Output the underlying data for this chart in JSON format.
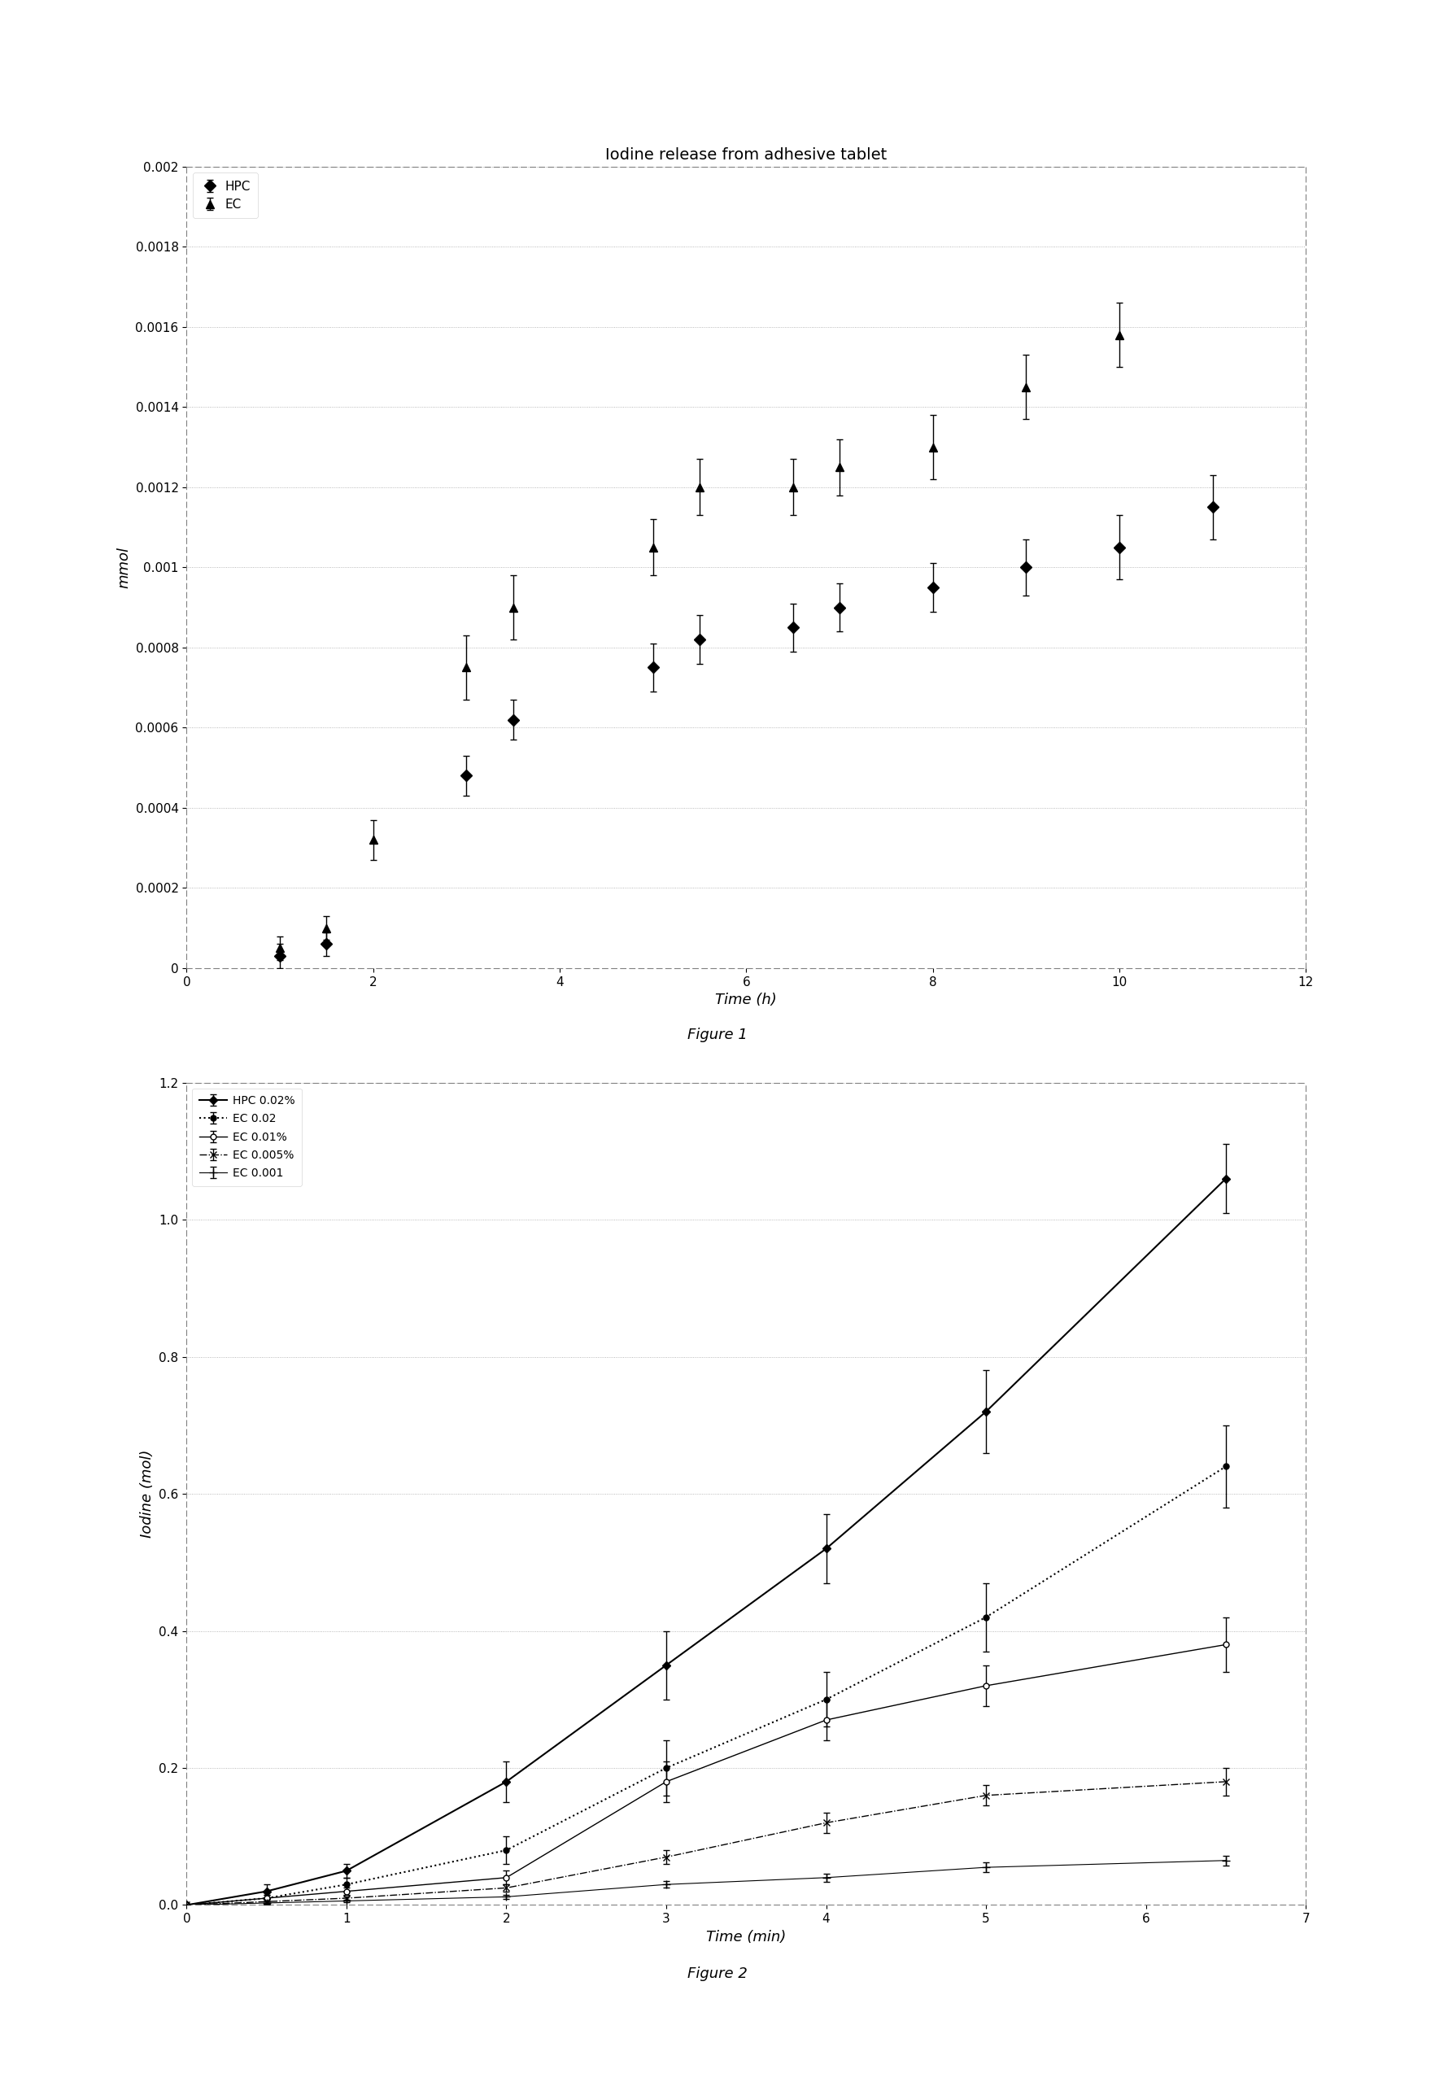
{
  "fig1": {
    "title": "Iodine release from adhesive tablet",
    "xlabel": "Time (h)",
    "ylabel": "mmol",
    "xlim": [
      0,
      12
    ],
    "ylim": [
      0,
      0.002
    ],
    "yticks": [
      0,
      0.0002,
      0.0004,
      0.0006,
      0.0008,
      0.001,
      0.0012,
      0.0014,
      0.0016,
      0.0018,
      0.002
    ],
    "xticks": [
      0,
      2,
      4,
      6,
      8,
      10,
      12
    ],
    "HPC": {
      "x": [
        1,
        1.5,
        3,
        3.5,
        5,
        5.5,
        6.5,
        7,
        8,
        9,
        10,
        11
      ],
      "y": [
        3e-05,
        6e-05,
        0.00048,
        0.00062,
        0.00075,
        0.00082,
        0.00085,
        0.0009,
        0.00095,
        0.001,
        0.00105,
        0.00115
      ],
      "yerr": [
        3e-05,
        3e-05,
        5e-05,
        5e-05,
        6e-05,
        6e-05,
        6e-05,
        6e-05,
        6e-05,
        7e-05,
        8e-05,
        8e-05
      ],
      "label": "HPC",
      "marker": "D",
      "color": "black"
    },
    "EC": {
      "x": [
        1,
        1.5,
        2,
        3,
        3.5,
        5,
        5.5,
        6.5,
        7,
        8,
        9,
        10
      ],
      "y": [
        5e-05,
        0.0001,
        0.00032,
        0.00075,
        0.0009,
        0.00105,
        0.0012,
        0.0012,
        0.00125,
        0.0013,
        0.00145,
        0.00158
      ],
      "yerr": [
        3e-05,
        3e-05,
        5e-05,
        8e-05,
        8e-05,
        7e-05,
        7e-05,
        7e-05,
        7e-05,
        8e-05,
        8e-05,
        8e-05
      ],
      "label": "EC",
      "marker": "^",
      "color": "black"
    }
  },
  "fig1_caption": "Figure 1",
  "fig2": {
    "xlabel": "Time (min)",
    "ylabel": "Iodine (mol)",
    "xlim": [
      0,
      7
    ],
    "ylim": [
      -0.05,
      1.2
    ],
    "ylim_display": [
      0,
      1.2
    ],
    "yticks": [
      0,
      0.2,
      0.4,
      0.6,
      0.8,
      1.0,
      1.2
    ],
    "xticks": [
      0,
      1,
      2,
      3,
      4,
      5,
      6,
      7
    ],
    "series": [
      {
        "label": "HPC 0.02%",
        "x": [
          0,
          0.5,
          1,
          2,
          3,
          4,
          5,
          6.5
        ],
        "y": [
          0,
          0.02,
          0.05,
          0.18,
          0.35,
          0.52,
          0.72,
          1.06
        ],
        "yerr": [
          0,
          0.01,
          0.01,
          0.03,
          0.05,
          0.05,
          0.06,
          0.05
        ],
        "linestyle": "-",
        "marker": "D",
        "color": "black",
        "linewidth": 1.5,
        "markersize": 5,
        "markerfacecolor": "black"
      },
      {
        "label": "EC 0.02",
        "x": [
          0,
          0.5,
          1,
          2,
          3,
          4,
          5,
          6.5
        ],
        "y": [
          0,
          0.01,
          0.03,
          0.08,
          0.2,
          0.3,
          0.42,
          0.64
        ],
        "yerr": [
          0,
          0.005,
          0.01,
          0.02,
          0.04,
          0.04,
          0.05,
          0.06
        ],
        "linestyle": ":",
        "marker": "o",
        "color": "black",
        "linewidth": 1.5,
        "markersize": 5,
        "markerfacecolor": "black"
      },
      {
        "label": "EC 0.01%",
        "x": [
          0,
          0.5,
          1,
          2,
          3,
          4,
          5,
          6.5
        ],
        "y": [
          0,
          0.01,
          0.02,
          0.04,
          0.18,
          0.27,
          0.32,
          0.38
        ],
        "yerr": [
          0,
          0.005,
          0.005,
          0.01,
          0.03,
          0.03,
          0.03,
          0.04
        ],
        "linestyle": "-",
        "marker": "o",
        "color": "black",
        "linewidth": 1.0,
        "markersize": 5,
        "markerfacecolor": "white"
      },
      {
        "label": "EC 0.005%",
        "x": [
          0,
          0.5,
          1,
          2,
          3,
          4,
          5,
          6.5
        ],
        "y": [
          0,
          0.005,
          0.01,
          0.025,
          0.07,
          0.12,
          0.16,
          0.18
        ],
        "yerr": [
          0,
          0.003,
          0.003,
          0.005,
          0.01,
          0.015,
          0.015,
          0.02
        ],
        "linestyle": "-.",
        "marker": "x",
        "color": "black",
        "linewidth": 1.0,
        "markersize": 6,
        "markerfacecolor": "black"
      },
      {
        "label": "EC 0.001",
        "x": [
          0,
          0.5,
          1,
          2,
          3,
          4,
          5,
          6.5
        ],
        "y": [
          0,
          0.003,
          0.006,
          0.012,
          0.03,
          0.04,
          0.055,
          0.065
        ],
        "yerr": [
          0,
          0.002,
          0.002,
          0.003,
          0.005,
          0.006,
          0.007,
          0.007
        ],
        "linestyle": "-",
        "marker": "+",
        "color": "black",
        "linewidth": 0.8,
        "markersize": 7,
        "markerfacecolor": "black"
      }
    ]
  },
  "fig2_caption": "Figure 2",
  "bg_color": "#ffffff"
}
